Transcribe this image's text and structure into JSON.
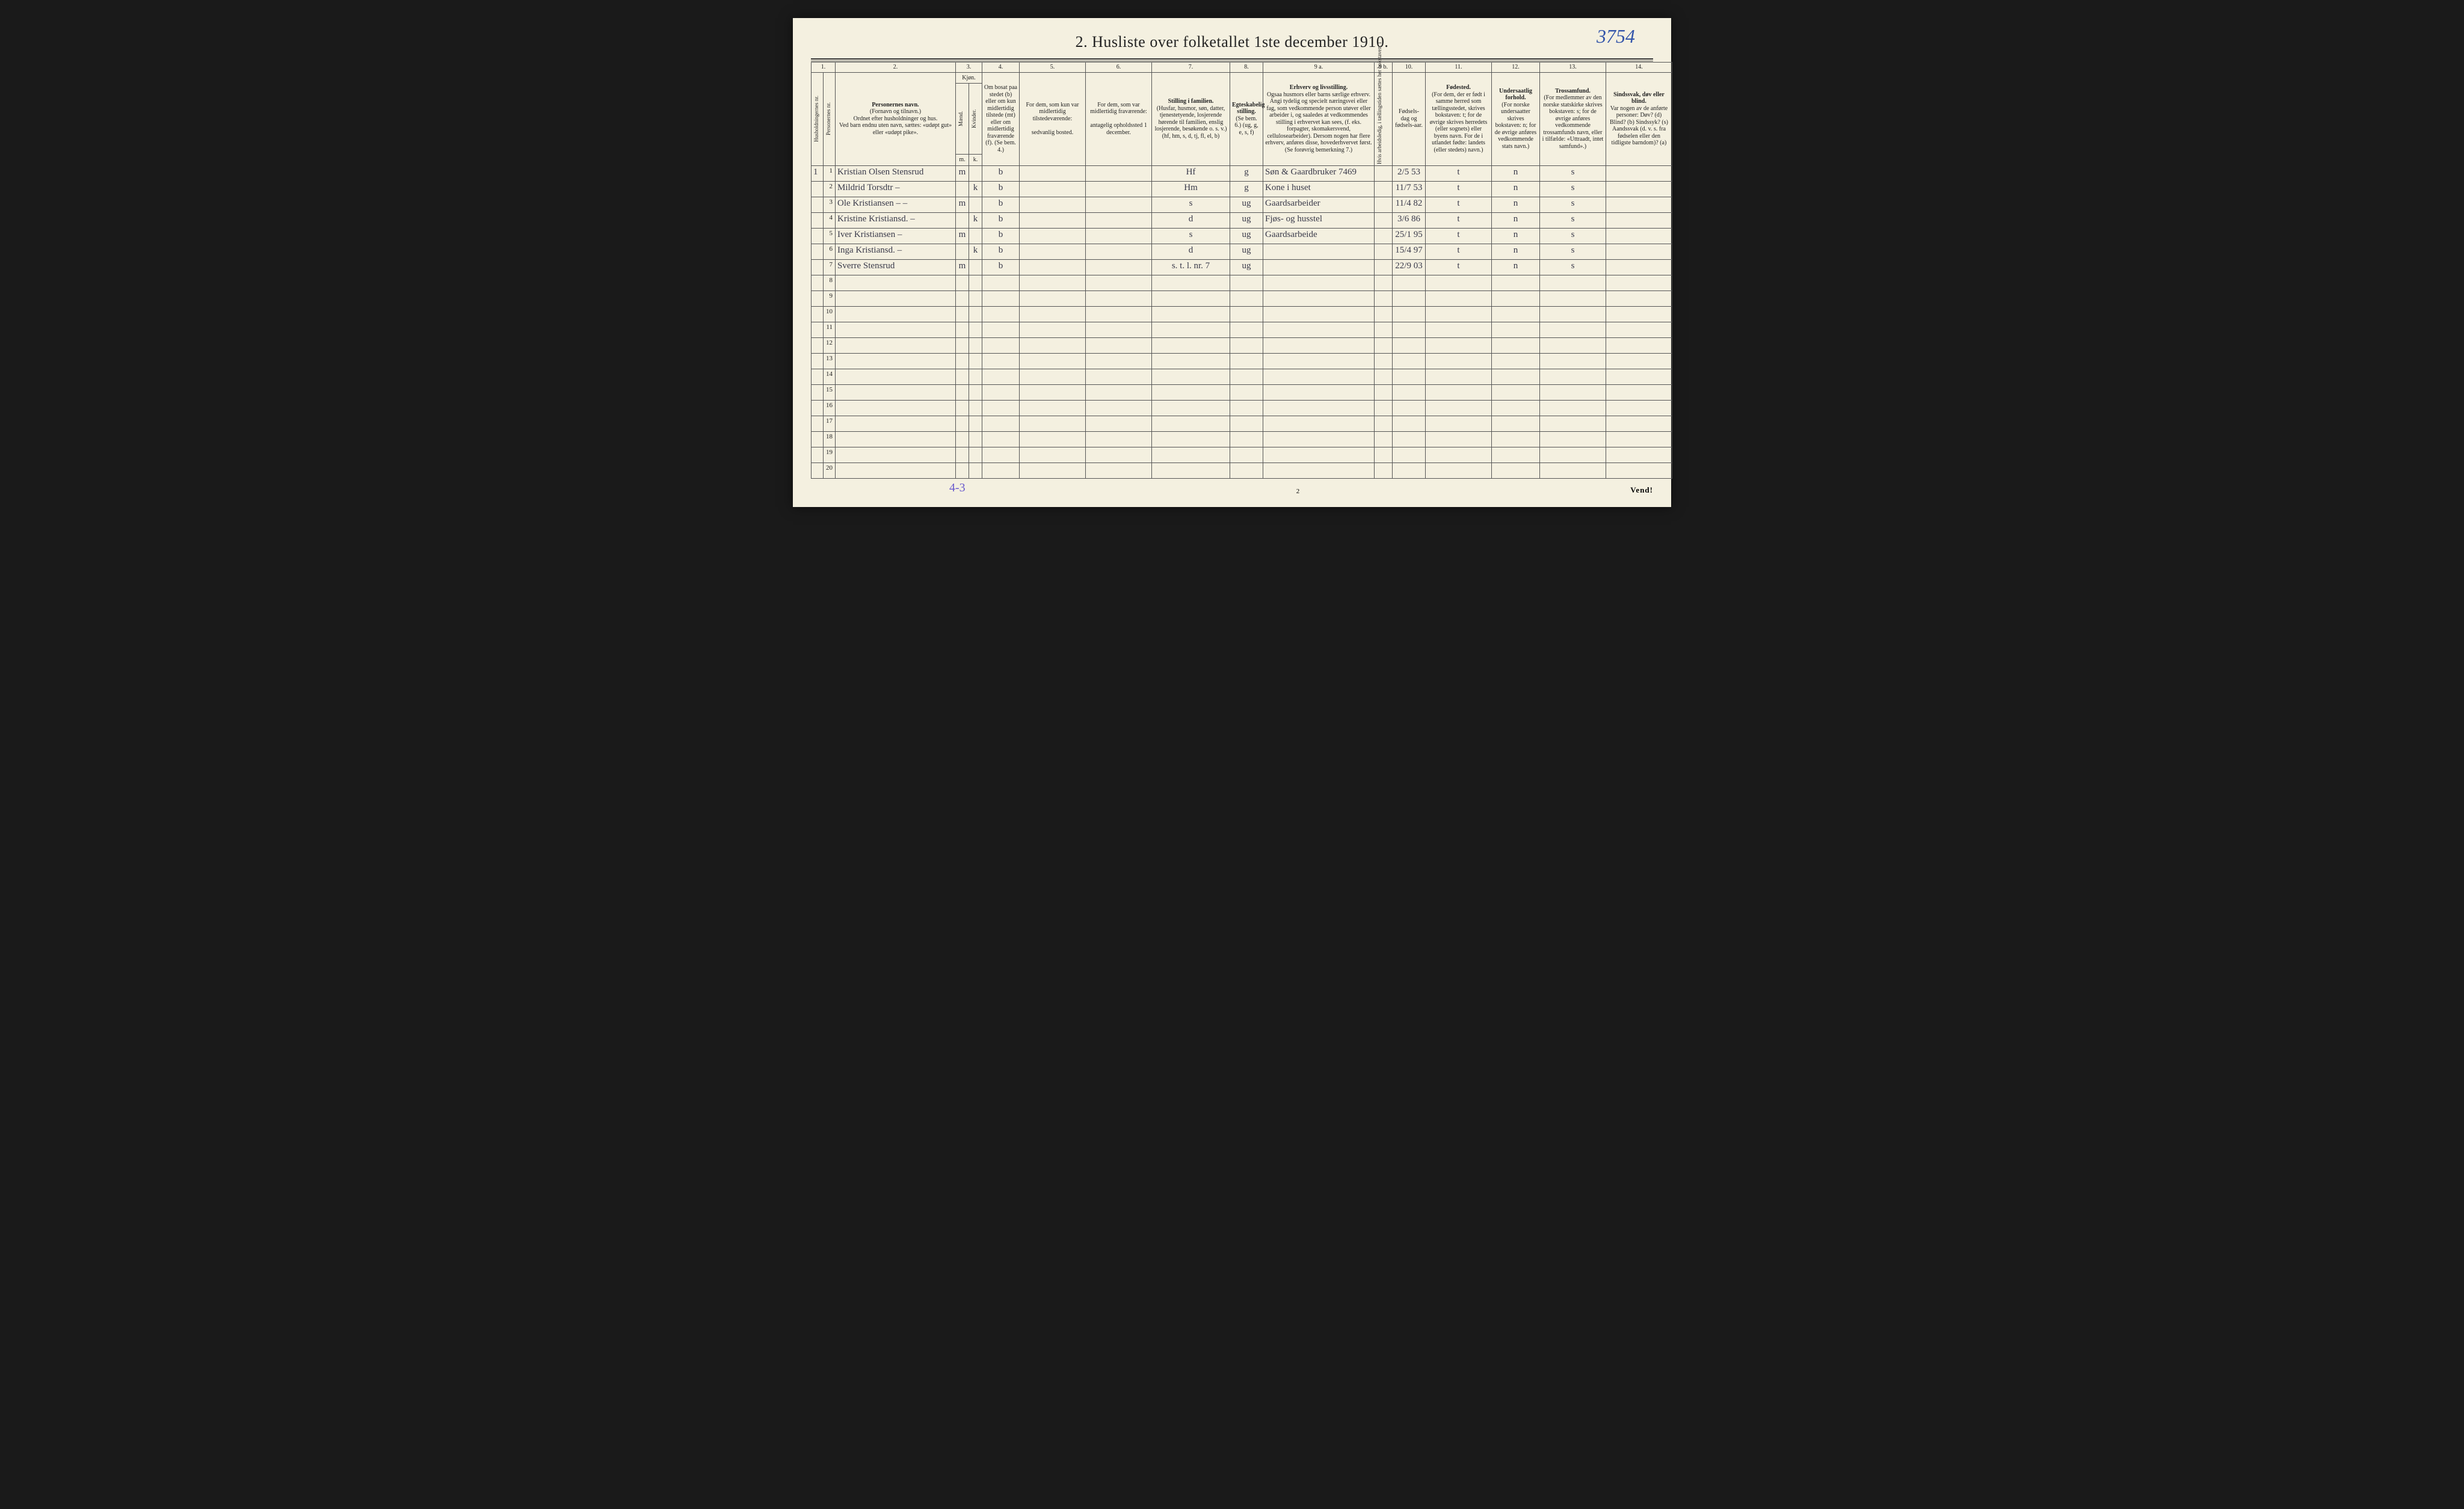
{
  "annotation_topright": "3754",
  "title": "2.  Husliste over folketallet 1ste december 1910.",
  "footer": {
    "pencil": "4-3",
    "page_number": "2",
    "vend": "Vend!"
  },
  "columns": {
    "nums": [
      "1.",
      "2.",
      "3.",
      "4.",
      "5.",
      "6.",
      "7.",
      "8.",
      "9 a.",
      "9 b.",
      "10.",
      "11.",
      "12.",
      "13.",
      "14."
    ],
    "h1": {
      "vert1": "Husholdningernes nr.",
      "vert2": "Personernes nr."
    },
    "h2": {
      "title": "Personernes navn.",
      "sub1": "(Fornavn og tilnavn.)",
      "sub2": "Ordnet efter husholdninger og hus.",
      "sub3": "Ved barn endnu uten navn, sættes: «udøpt gut» eller «udøpt pike»."
    },
    "h3": {
      "title": "Kjøn.",
      "m": "Mænd.",
      "k": "Kvinder.",
      "mlab": "m.",
      "klab": "k."
    },
    "h4": "Om bosat paa stedet (b) eller om kun midlertidig tilstede (mt) eller om midlertidig fraværende (f). (Se bem. 4.)",
    "h5": {
      "title": "For dem, som kun var midlertidig tilstedeværende:",
      "sub": "sedvanlig bosted."
    },
    "h6": {
      "title": "For dem, som var midlertidig fraværende:",
      "sub": "antagelig opholdssted 1 december."
    },
    "h7": {
      "title": "Stilling i familien.",
      "sub1": "(Husfar, husmor, søn, datter, tjenestetyende, losjerende hørende til familien, enslig losjerende, besøkende o. s. v.)",
      "sub2": "(hf, hm, s, d, tj, fl, el, b)"
    },
    "h8": {
      "title": "Egteskabelig stilling.",
      "sub": "(Se bem. 6.) (ug, g, e, s, f)"
    },
    "h9a": {
      "title": "Erhverv og livsstilling.",
      "sub": "Ogsaa husmors eller barns særlige erhverv. Angi tydelig og specielt næringsvei eller fag, som vedkommende person utøver eller arbeider i, og saaledes at vedkommendes stilling i erhvervet kan sees, (f. eks. forpagter, skomakersvend, cellulosearbeider). Dersom nogen har flere erhverv, anføres disse, hovederhvervet først. (Se forøvrig bemerkning 7.)"
    },
    "h9b": "Hvis arbeidsledig, i tællingstiden sættes her bokstaven: l",
    "h10": "Fødsels-dag og fødsels-aar.",
    "h11": {
      "title": "Fødested.",
      "sub": "(For dem, der er født i samme herred som tællingsstedet, skrives bokstaven: t; for de øvrige skrives herredets (eller sognets) eller byens navn. For de i utlandet fødte: landets (eller stedets) navn.)"
    },
    "h12": {
      "title": "Undersaatlig forhold.",
      "sub": "(For norske undersaatter skrives bokstaven: n; for de øvrige anføres vedkommende stats navn.)"
    },
    "h13": {
      "title": "Trossamfund.",
      "sub": "(For medlemmer av den norske statskirke skrives bokstaven: s; for de øvrige anføres vedkommende trossamfunds navn, eller i tilfælde: «Uttraadt, intet samfund».)"
    },
    "h14": {
      "title": "Sindssvak, døv eller blind.",
      "sub": "Var nogen av de anførte personer: Døv? (d) Blind? (b) Sindssyk? (s) Aandssvak (d. v. s. fra fødselen eller den tidligste barndom)? (a)"
    }
  },
  "rows": [
    {
      "n": "1",
      "hush": "1",
      "name": "Kristian Olsen Stensrud",
      "m": "m",
      "k": "",
      "bosat": "b",
      "c5": "",
      "c6": "",
      "stilling": "Hf",
      "egte": "g",
      "erhverv": "Søn & Gaardbruker  7469",
      "c9b": "",
      "fodsel": "2/5 53",
      "fodested": "t",
      "under": "n",
      "tros": "s",
      "c14": ""
    },
    {
      "n": "2",
      "hush": "",
      "name": "Mildrid Torsdtr      –",
      "m": "",
      "k": "k",
      "bosat": "b",
      "c5": "",
      "c6": "",
      "stilling": "Hm",
      "egte": "g",
      "erhverv": "Kone i huset",
      "c9b": "",
      "fodsel": "11/7 53",
      "fodested": "t",
      "under": "n",
      "tros": "s",
      "c14": ""
    },
    {
      "n": "3",
      "hush": "",
      "name": "Ole Kristiansen   – –",
      "m": "m",
      "k": "",
      "bosat": "b",
      "c5": "",
      "c6": "",
      "stilling": "s",
      "egte": "ug",
      "erhverv": "Gaardsarbeider",
      "c9b": "",
      "fodsel": "11/4 82",
      "fodested": "t",
      "under": "n",
      "tros": "s",
      "c14": ""
    },
    {
      "n": "4",
      "hush": "",
      "name": "Kristine Kristiansd. –",
      "m": "",
      "k": "k",
      "bosat": "b",
      "c5": "",
      "c6": "",
      "stilling": "d",
      "egte": "ug",
      "erhverv": "Fjøs- og husstel",
      "c9b": "",
      "fodsel": "3/6 86",
      "fodested": "t",
      "under": "n",
      "tros": "s",
      "c14": ""
    },
    {
      "n": "5",
      "hush": "",
      "name": "Iver Kristiansen  –",
      "m": "m",
      "k": "",
      "bosat": "b",
      "c5": "",
      "c6": "",
      "stilling": "s",
      "egte": "ug",
      "erhverv": "Gaardsarbeide",
      "c9b": "",
      "fodsel": "25/1 95",
      "fodested": "t",
      "under": "n",
      "tros": "s",
      "c14": ""
    },
    {
      "n": "6",
      "hush": "",
      "name": "Inga Kristiansd.  –",
      "m": "",
      "k": "k",
      "bosat": "b",
      "c5": "",
      "c6": "",
      "stilling": "d",
      "egte": "ug",
      "erhverv": "",
      "c9b": "",
      "fodsel": "15/4 97",
      "fodested": "t",
      "under": "n",
      "tros": "s",
      "c14": ""
    },
    {
      "n": "7",
      "hush": "",
      "name": "Sverre   Stensrud",
      "m": "m",
      "k": "",
      "bosat": "b",
      "c5": "",
      "c6": "",
      "stilling": "s. t. l. nr. 7",
      "egte": "ug",
      "erhverv": "",
      "c9b": "",
      "fodsel": "22/9 03",
      "fodested": "t",
      "under": "n",
      "tros": "s",
      "c14": ""
    }
  ],
  "empty_rows": [
    "8",
    "9",
    "10",
    "11",
    "12",
    "13",
    "14",
    "15",
    "16",
    "17",
    "18",
    "19",
    "20"
  ],
  "colors": {
    "paper": "#f4f0e0",
    "ink": "#222222",
    "rule": "#555555",
    "handwriting": "#3a3a4a",
    "pencil_blue": "#3355aa",
    "pencil_purple": "#6a5acd"
  }
}
